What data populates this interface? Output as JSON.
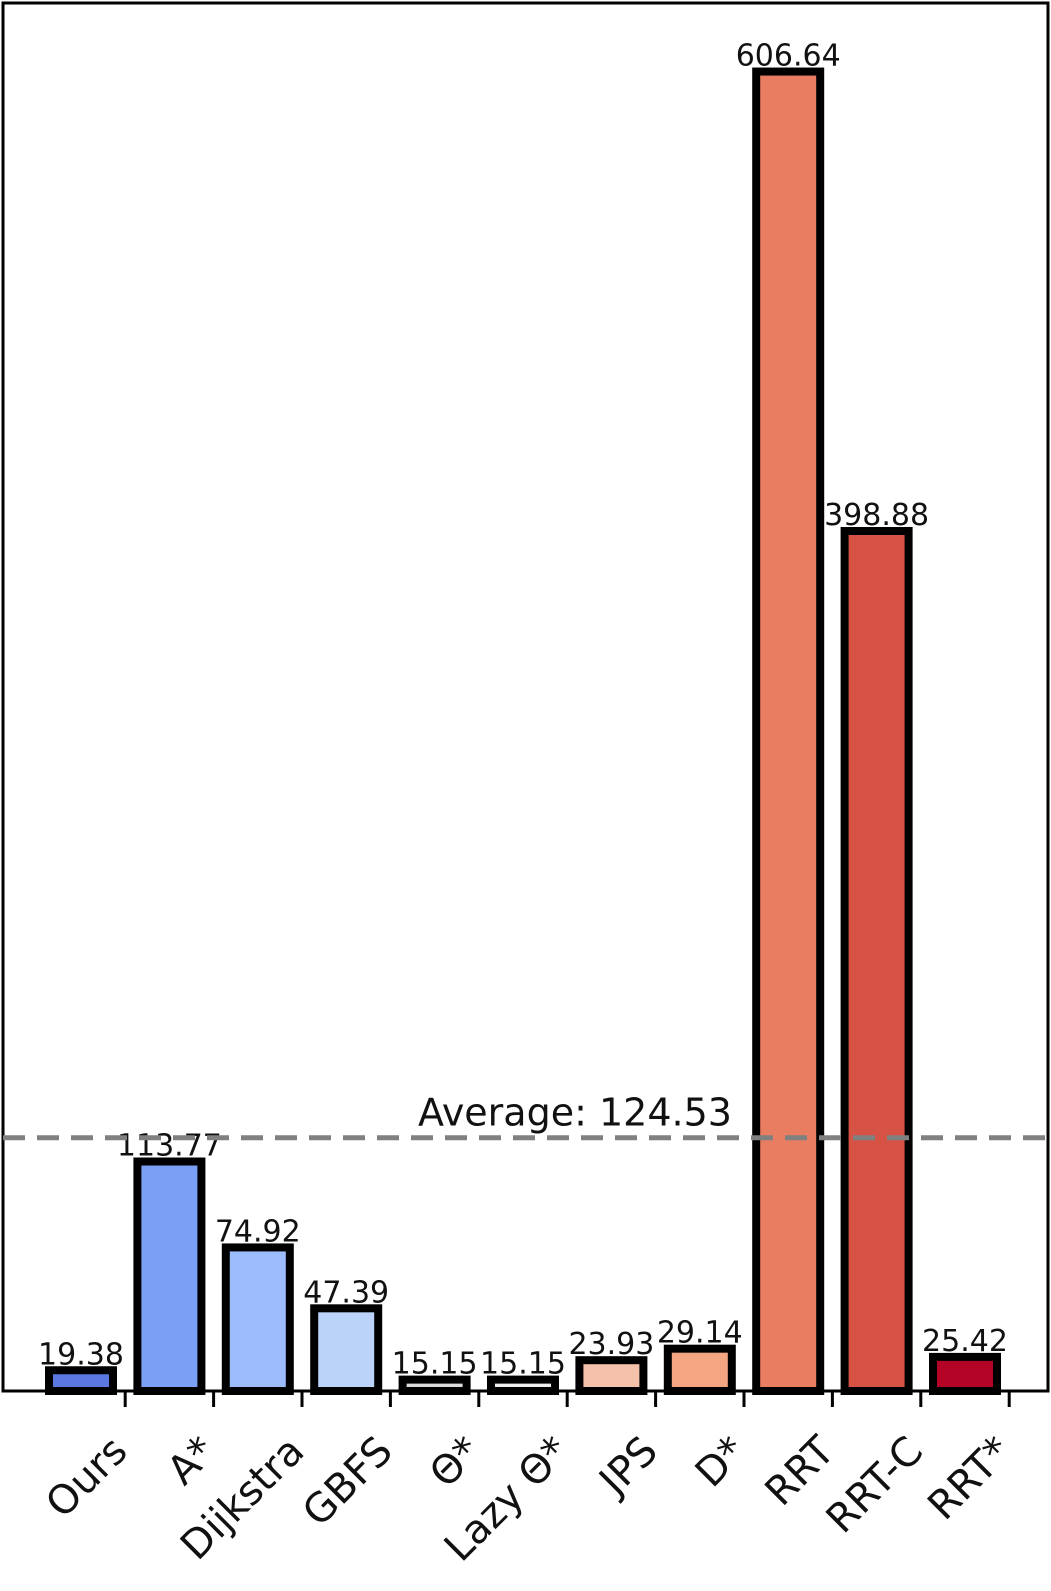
{
  "chart_data": {
    "type": "bar",
    "title": "",
    "xlabel": "",
    "ylabel": "",
    "categories": [
      "Ours",
      "A*",
      "Dijkstra",
      "GBFS",
      "Θ*",
      "Lazy Θ*",
      "JPS",
      "D*",
      "RRT",
      "RRT-C",
      "RRT*"
    ],
    "values": [
      19.38,
      113.77,
      74.92,
      47.39,
      15.15,
      15.15,
      23.93,
      29.14,
      606.64,
      398.88,
      25.42
    ],
    "value_labels": [
      "19.38",
      "113.77",
      "74.92",
      "47.39",
      "15.15",
      "15.15",
      "23.93",
      "29.14",
      "606.64",
      "398.88",
      "25.42"
    ],
    "colors": [
      "#5a78e0",
      "#7b9ff5",
      "#9dbcfc",
      "#bcd3f9",
      "#dcdcdc",
      "#eeeeee",
      "#f4c2aa",
      "#f4a582",
      "#e87d62",
      "#d65244",
      "#b40426"
    ],
    "ylim": [
      10,
      620
    ],
    "grid": false,
    "legend": "none",
    "average": {
      "value": 124.53,
      "label": "Average: 124.53",
      "color": "#808080"
    }
  }
}
